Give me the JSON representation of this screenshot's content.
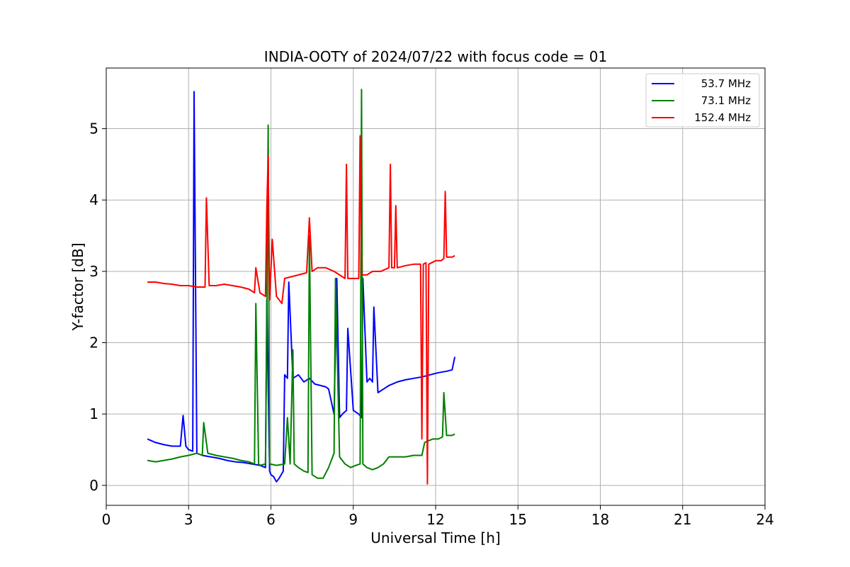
{
  "chart_data": {
    "type": "line",
    "title": "INDIA-OOTY of 2024/07/22 with focus code = 01",
    "xlabel": "Universal Time [h]",
    "ylabel": "Y-factor [dB]",
    "xlim": [
      0,
      24
    ],
    "ylim": [
      -0.28,
      5.85
    ],
    "xticks": [
      0,
      3,
      6,
      9,
      12,
      15,
      18,
      21,
      24
    ],
    "yticks": [
      0,
      1,
      2,
      3,
      4,
      5
    ],
    "grid": true,
    "legend_position": "top-right",
    "series": [
      {
        "name": "53.7 MHz",
        "color": "#0000ff",
        "x": [
          1.5,
          1.8,
          2.1,
          2.4,
          2.7,
          2.8,
          2.9,
          3.0,
          3.15,
          3.2,
          3.3,
          3.5,
          3.8,
          4.1,
          4.4,
          4.7,
          5.0,
          5.3,
          5.6,
          5.8,
          5.85,
          5.95,
          6.0,
          6.1,
          6.2,
          6.3,
          6.45,
          6.5,
          6.6,
          6.65,
          6.8,
          7.0,
          7.2,
          7.4,
          7.6,
          7.8,
          8.0,
          8.1,
          8.3,
          8.4,
          8.5,
          8.6,
          8.75,
          8.8,
          9.0,
          9.2,
          9.3,
          9.35,
          9.5,
          9.6,
          9.7,
          9.75,
          9.9,
          10.1,
          10.3,
          10.6,
          10.9,
          11.2,
          11.5,
          11.8,
          12.1,
          12.4,
          12.6,
          12.7
        ],
        "y": [
          0.65,
          0.6,
          0.57,
          0.55,
          0.55,
          0.98,
          0.55,
          0.5,
          0.48,
          5.52,
          0.45,
          0.42,
          0.4,
          0.38,
          0.35,
          0.33,
          0.32,
          0.3,
          0.28,
          0.25,
          2.6,
          0.2,
          0.15,
          0.12,
          0.05,
          0.1,
          0.2,
          1.55,
          1.5,
          2.85,
          1.5,
          1.55,
          1.45,
          1.5,
          1.42,
          1.4,
          1.38,
          1.35,
          1.0,
          2.9,
          0.95,
          1.0,
          1.05,
          2.2,
          1.05,
          1.0,
          0.95,
          2.9,
          1.45,
          1.5,
          1.45,
          2.5,
          1.3,
          1.35,
          1.4,
          1.45,
          1.48,
          1.5,
          1.52,
          1.55,
          1.58,
          1.6,
          1.62,
          1.8
        ]
      },
      {
        "name": "73.1 MHz",
        "color": "#008000",
        "x": [
          1.5,
          1.8,
          2.1,
          2.4,
          2.7,
          3.0,
          3.3,
          3.5,
          3.55,
          3.7,
          4.0,
          4.3,
          4.6,
          4.9,
          5.2,
          5.4,
          5.45,
          5.55,
          5.6,
          5.8,
          5.85,
          5.9,
          5.95,
          6.2,
          6.5,
          6.6,
          6.7,
          6.8,
          6.85,
          7.0,
          7.2,
          7.35,
          7.4,
          7.5,
          7.7,
          7.9,
          8.1,
          8.3,
          8.35,
          8.5,
          8.7,
          8.9,
          9.1,
          9.25,
          9.3,
          9.35,
          9.5,
          9.7,
          9.9,
          10.1,
          10.3,
          10.6,
          10.9,
          11.2,
          11.5,
          11.6,
          11.7,
          11.9,
          12.1,
          12.25,
          12.3,
          12.4,
          12.6,
          12.7
        ],
        "y": [
          0.35,
          0.33,
          0.35,
          0.37,
          0.4,
          0.42,
          0.45,
          0.42,
          0.88,
          0.45,
          0.42,
          0.4,
          0.38,
          0.35,
          0.33,
          0.3,
          2.55,
          0.3,
          0.28,
          0.3,
          2.3,
          5.05,
          0.3,
          0.28,
          0.3,
          0.95,
          0.3,
          1.9,
          0.3,
          0.25,
          0.2,
          0.18,
          3.5,
          0.15,
          0.1,
          0.1,
          0.25,
          0.45,
          2.9,
          0.4,
          0.3,
          0.25,
          0.28,
          0.3,
          5.55,
          0.3,
          0.25,
          0.22,
          0.25,
          0.3,
          0.4,
          0.4,
          0.4,
          0.42,
          0.42,
          0.6,
          0.62,
          0.65,
          0.65,
          0.68,
          1.3,
          0.7,
          0.7,
          0.72
        ]
      },
      {
        "name": "152.4 MHz",
        "color": "#ff0000",
        "x": [
          1.5,
          1.8,
          2.1,
          2.4,
          2.7,
          3.0,
          3.3,
          3.6,
          3.65,
          3.75,
          4.0,
          4.3,
          4.6,
          4.9,
          5.2,
          5.4,
          5.45,
          5.6,
          5.8,
          5.85,
          5.9,
          5.95,
          6.05,
          6.2,
          6.4,
          6.5,
          6.7,
          7.0,
          7.3,
          7.4,
          7.5,
          7.7,
          8.0,
          8.3,
          8.5,
          8.7,
          8.75,
          8.8,
          9.0,
          9.2,
          9.25,
          9.3,
          9.5,
          9.7,
          10.0,
          10.3,
          10.35,
          10.4,
          10.5,
          10.55,
          10.6,
          10.9,
          11.2,
          11.45,
          11.5,
          11.55,
          11.65,
          11.7,
          11.75,
          12.0,
          12.2,
          12.3,
          12.35,
          12.4,
          12.6,
          12.7
        ],
        "y": [
          2.85,
          2.85,
          2.83,
          2.82,
          2.8,
          2.8,
          2.78,
          2.78,
          4.03,
          2.8,
          2.8,
          2.82,
          2.8,
          2.78,
          2.75,
          2.7,
          3.05,
          2.7,
          2.65,
          3.9,
          4.62,
          2.6,
          3.45,
          2.65,
          2.55,
          2.9,
          2.92,
          2.95,
          2.98,
          3.75,
          3.0,
          3.05,
          3.05,
          3.0,
          2.95,
          2.9,
          4.5,
          2.9,
          2.9,
          2.9,
          4.9,
          2.95,
          2.95,
          3.0,
          3.0,
          3.05,
          4.5,
          3.05,
          3.05,
          3.92,
          3.05,
          3.08,
          3.1,
          3.1,
          0.65,
          3.1,
          3.12,
          0.02,
          3.1,
          3.15,
          3.15,
          3.18,
          4.12,
          3.2,
          3.2,
          3.22
        ]
      }
    ]
  }
}
